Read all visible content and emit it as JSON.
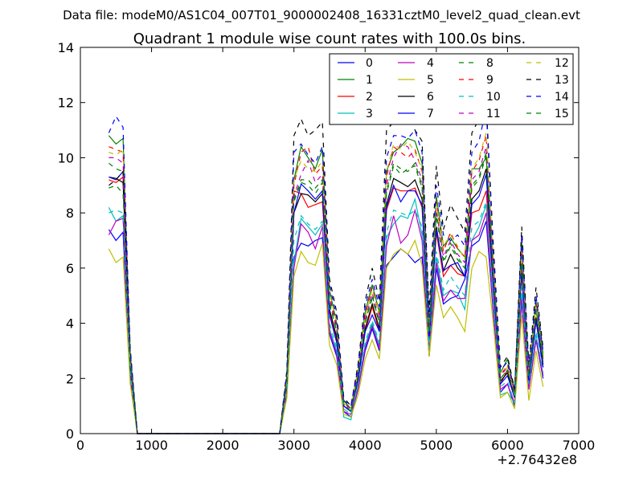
{
  "chart_data": {
    "type": "line",
    "suptitle": "Data file: modeM0/AS1C04_007T01_9000002408_16331cztM0_level2_quad_clean.evt",
    "title": "Quadrant 1 module wise count rates with 100.0s bins.",
    "xlabel": "",
    "ylabel": "",
    "x_offset_label": "+2.76432e8",
    "xlim": [
      0,
      7000
    ],
    "ylim": [
      0,
      14
    ],
    "xticks": [
      "0",
      "1000",
      "2000",
      "3000",
      "4000",
      "5000",
      "6000",
      "7000"
    ],
    "yticks": [
      "0",
      "2",
      "4",
      "6",
      "8",
      "10",
      "12",
      "14"
    ],
    "grid": false,
    "legend_placement": "top-right",
    "x": [
      400,
      500,
      600,
      700,
      800,
      2800,
      2900,
      3000,
      3100,
      3200,
      3300,
      3400,
      3500,
      3600,
      3700,
      3800,
      3900,
      4000,
      4100,
      4200,
      4300,
      4400,
      4500,
      4600,
      4700,
      4800,
      4900,
      5000,
      5100,
      5200,
      5300,
      5400,
      5500,
      5600,
      5700,
      5800,
      5900,
      6000,
      6100,
      6200,
      6300,
      6400,
      6500
    ],
    "series": [
      {
        "name": "0",
        "color": "#0000ff",
        "dash": false,
        "values": [
          7.4,
          7.0,
          7.3,
          2.0,
          0,
          0,
          1.4,
          6.4,
          6.9,
          6.8,
          7.0,
          7.1,
          3.6,
          2.8,
          0.8,
          0.6,
          1.6,
          3.0,
          3.8,
          3.0,
          6.1,
          6.4,
          6.7,
          6.5,
          6.2,
          6.4,
          2.8,
          6.0,
          4.7,
          4.9,
          5.0,
          5.6,
          6.8,
          7.0,
          7.7,
          4.4,
          1.5,
          1.8,
          1.0,
          4.8,
          1.6,
          3.4,
          2.0
        ]
      },
      {
        "name": "1",
        "color": "#008000",
        "dash": false,
        "values": [
          10.8,
          10.5,
          10.7,
          2.9,
          0,
          0,
          2.1,
          9.2,
          10.4,
          10.0,
          9.6,
          10.3,
          5.2,
          4.0,
          1.2,
          0.9,
          2.3,
          4.4,
          5.4,
          4.4,
          9.5,
          10.2,
          10.4,
          10.7,
          10.6,
          9.8,
          4.0,
          8.6,
          6.8,
          7.1,
          6.7,
          6.4,
          9.6,
          9.6,
          10.0,
          6.3,
          2.2,
          2.7,
          1.5,
          6.9,
          2.3,
          4.8,
          2.9
        ]
      },
      {
        "name": "2",
        "color": "#ff0000",
        "dash": false,
        "values": [
          9.2,
          9.1,
          9.3,
          2.4,
          0,
          0,
          1.7,
          8.8,
          8.7,
          8.2,
          8.3,
          8.4,
          4.4,
          3.4,
          1.0,
          0.8,
          1.9,
          3.7,
          4.6,
          3.7,
          8.1,
          8.9,
          8.8,
          8.8,
          8.9,
          8.2,
          3.4,
          7.3,
          5.7,
          6.1,
          5.8,
          5.7,
          8.0,
          8.1,
          8.8,
          5.3,
          1.8,
          2.3,
          1.3,
          5.8,
          1.9,
          4.1,
          2.4
        ]
      },
      {
        "name": "3",
        "color": "#00bfbf",
        "dash": false,
        "values": [
          8.2,
          7.7,
          7.9,
          2.1,
          0,
          0,
          1.5,
          6.2,
          7.8,
          7.5,
          7.2,
          7.6,
          3.8,
          3.0,
          0.6,
          0.5,
          1.7,
          3.2,
          4.0,
          3.2,
          7.1,
          7.6,
          7.9,
          7.8,
          8.5,
          7.2,
          3.0,
          6.4,
          5.0,
          5.2,
          5.1,
          4.5,
          7.0,
          7.5,
          8.3,
          4.7,
          1.4,
          1.5,
          1.1,
          5.1,
          1.7,
          3.6,
          2.1
        ]
      },
      {
        "name": "4",
        "color": "#bf00bf",
        "dash": false,
        "values": [
          7.2,
          7.7,
          7.8,
          2.1,
          0,
          0,
          1.5,
          6.0,
          7.6,
          7.3,
          6.7,
          7.5,
          3.7,
          2.9,
          0.8,
          0.7,
          1.6,
          3.1,
          3.9,
          3.1,
          6.8,
          7.9,
          6.9,
          7.2,
          8.1,
          7.0,
          2.9,
          6.2,
          4.8,
          5.2,
          4.9,
          4.9,
          7.0,
          7.2,
          8.0,
          4.5,
          1.6,
          1.8,
          1.1,
          4.9,
          1.6,
          3.4,
          2.1
        ]
      },
      {
        "name": "5",
        "color": "#bfbf00",
        "dash": false,
        "values": [
          6.7,
          6.2,
          6.4,
          1.8,
          0,
          0,
          1.3,
          5.7,
          6.6,
          6.2,
          6.1,
          6.9,
          3.2,
          2.5,
          0.7,
          0.6,
          1.4,
          2.7,
          3.4,
          2.7,
          6.0,
          6.5,
          6.7,
          6.5,
          7.0,
          6.1,
          2.8,
          5.4,
          4.2,
          4.6,
          4.2,
          3.7,
          6.0,
          6.6,
          6.4,
          4.0,
          1.3,
          1.5,
          0.9,
          4.3,
          1.2,
          3.0,
          1.7
        ]
      },
      {
        "name": "6",
        "color": "#000000",
        "dash": false,
        "values": [
          9.3,
          9.25,
          9.1,
          2.5,
          0,
          0,
          1.8,
          8.0,
          8.7,
          8.65,
          8.4,
          8.7,
          4.5,
          3.5,
          1.0,
          0.8,
          2.0,
          3.8,
          4.7,
          3.8,
          8.3,
          9.25,
          9.1,
          8.95,
          9.2,
          8.5,
          3.5,
          7.5,
          5.9,
          6.5,
          6.0,
          5.7,
          8.5,
          8.8,
          9.6,
          5.5,
          1.9,
          2.2,
          1.3,
          6.0,
          2.0,
          4.2,
          2.5
        ]
      },
      {
        "name": "7",
        "color": "#0000ff",
        "dash": false,
        "values": [
          9.3,
          9.2,
          9.5,
          2.4,
          0,
          0,
          1.8,
          8.0,
          9.05,
          8.8,
          8.5,
          8.8,
          4.3,
          3.3,
          1.0,
          0.8,
          1.9,
          3.7,
          4.3,
          3.7,
          8.2,
          9.0,
          8.4,
          8.8,
          8.8,
          8.3,
          3.4,
          7.4,
          5.9,
          6.1,
          6.2,
          5.7,
          8.3,
          8.6,
          9.4,
          5.4,
          1.8,
          2.1,
          1.3,
          5.9,
          1.9,
          4.1,
          2.4
        ]
      },
      {
        "name": "8",
        "color": "#008000",
        "dash": true,
        "values": [
          9.8,
          9.6,
          9.5,
          2.6,
          0,
          0,
          1.9,
          8.4,
          9.1,
          9.0,
          8.7,
          9.1,
          4.7,
          3.7,
          1.1,
          0.8,
          2.1,
          4.0,
          4.9,
          4.0,
          8.7,
          9.7,
          9.4,
          9.6,
          9.7,
          8.9,
          3.7,
          7.9,
          6.2,
          6.8,
          6.3,
          6.0,
          8.9,
          9.2,
          10.1,
          5.8,
          2.0,
          2.3,
          1.4,
          6.3,
          2.1,
          4.4,
          2.6
        ]
      },
      {
        "name": "9",
        "color": "#ff0000",
        "dash": true,
        "values": [
          10.4,
          10.3,
          10.2,
          2.8,
          0,
          0,
          2.0,
          9.0,
          10.2,
          10.4,
          9.4,
          9.7,
          5.0,
          3.9,
          1.1,
          0.9,
          2.2,
          4.3,
          5.3,
          4.3,
          9.3,
          10.4,
          10.2,
          10.0,
          10.3,
          9.5,
          3.9,
          8.4,
          6.6,
          7.3,
          6.7,
          6.4,
          9.5,
          9.9,
          10.8,
          6.2,
          2.1,
          2.5,
          1.5,
          6.7,
          2.2,
          4.7,
          2.8
        ]
      },
      {
        "name": "10",
        "color": "#00bfbf",
        "dash": true,
        "values": [
          8.0,
          8.1,
          8.0,
          2.2,
          0,
          0,
          1.6,
          7.0,
          7.9,
          7.6,
          7.4,
          7.7,
          4.0,
          3.1,
          0.9,
          0.7,
          1.8,
          3.3,
          4.1,
          3.3,
          7.3,
          8.1,
          8.0,
          7.9,
          8.1,
          7.5,
          3.1,
          6.6,
          5.2,
          5.7,
          5.3,
          5.0,
          7.5,
          7.7,
          8.4,
          4.8,
          1.7,
          1.9,
          1.1,
          5.3,
          1.8,
          3.7,
          2.2
        ]
      },
      {
        "name": "11",
        "color": "#bf00bf",
        "dash": true,
        "values": [
          10.0,
          10.0,
          9.8,
          2.7,
          0,
          0,
          1.9,
          8.6,
          9.4,
          9.9,
          9.1,
          9.4,
          4.9,
          3.8,
          1.1,
          0.9,
          2.2,
          4.1,
          5.1,
          4.1,
          9.0,
          10.0,
          10.5,
          10.4,
          9.9,
          9.2,
          3.8,
          8.1,
          6.4,
          7.0,
          6.5,
          6.2,
          9.2,
          9.5,
          10.4,
          5.9,
          2.1,
          2.4,
          1.4,
          6.5,
          2.2,
          4.5,
          2.7
        ]
      },
      {
        "name": "12",
        "color": "#bfbf00",
        "dash": true,
        "values": [
          10.2,
          10.1,
          10.3,
          2.8,
          0,
          0,
          2.0,
          9.2,
          9.9,
          9.6,
          9.5,
          9.9,
          5.1,
          4.0,
          1.1,
          0.9,
          2.3,
          4.2,
          5.2,
          4.4,
          9.5,
          10.5,
          10.3,
          10.6,
          10.2,
          9.6,
          4.0,
          8.3,
          6.8,
          7.2,
          6.8,
          6.3,
          9.6,
          10.0,
          10.9,
          6.1,
          2.2,
          2.4,
          1.4,
          6.6,
          2.3,
          4.6,
          2.8
        ]
      },
      {
        "name": "13",
        "color": "#000000",
        "dash": true,
        "values": [
          9.0,
          9.2,
          9.5,
          3.1,
          0,
          0,
          2.3,
          10.8,
          11.4,
          10.8,
          11.0,
          11.3,
          5.6,
          4.4,
          1.3,
          1.0,
          2.5,
          4.8,
          6.0,
          4.8,
          11.0,
          11.3,
          11.6,
          12.0,
          11.0,
          10.6,
          4.4,
          9.7,
          7.4,
          8.3,
          7.8,
          7.3,
          10.9,
          11.4,
          12.0,
          6.9,
          2.4,
          2.8,
          1.6,
          7.5,
          2.5,
          5.3,
          3.1
        ]
      },
      {
        "name": "14",
        "color": "#0000ff",
        "dash": true,
        "values": [
          10.9,
          11.5,
          11.1,
          3.0,
          0,
          0,
          2.2,
          10.2,
          10.5,
          10.1,
          9.8,
          10.4,
          5.4,
          4.2,
          1.2,
          1.0,
          2.4,
          4.6,
          5.6,
          4.6,
          10.0,
          10.8,
          10.8,
          10.7,
          11.0,
          10.2,
          4.2,
          9.0,
          7.2,
          7.0,
          7.2,
          6.8,
          10.2,
          10.6,
          11.8,
          6.6,
          2.3,
          2.6,
          1.6,
          7.2,
          2.4,
          5.0,
          3.0
        ]
      },
      {
        "name": "15",
        "color": "#008000",
        "dash": true,
        "values": [
          8.9,
          9.0,
          8.7,
          2.7,
          0,
          0,
          1.9,
          8.5,
          9.2,
          9.2,
          8.9,
          9.2,
          4.8,
          3.7,
          1.1,
          0.8,
          2.1,
          4.0,
          5.0,
          4.0,
          8.8,
          9.8,
          9.6,
          9.5,
          9.8,
          9.0,
          3.7,
          8.0,
          6.3,
          6.9,
          6.4,
          6.0,
          9.0,
          9.3,
          10.2,
          5.8,
          2.0,
          2.3,
          1.4,
          6.4,
          2.1,
          4.5,
          2.7
        ]
      }
    ]
  }
}
